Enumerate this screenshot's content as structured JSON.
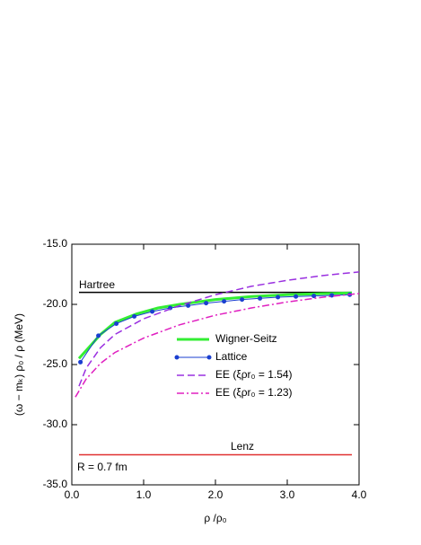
{
  "chart_data": {
    "type": "line",
    "xlabel": "ρ /ρ₀",
    "ylabel": "(ω − mₖ) ρ₀ / ρ (MeV)",
    "xlim": [
      0,
      4
    ],
    "ylim": [
      -35,
      -15
    ],
    "xticks": [
      {
        "value": 0,
        "label": "0.0"
      },
      {
        "value": 1,
        "label": "1.0"
      },
      {
        "value": 2,
        "label": "2.0"
      },
      {
        "value": 3,
        "label": "3.0"
      },
      {
        "value": 4,
        "label": "4.0"
      }
    ],
    "yticks": [
      {
        "value": -35,
        "label": "-35.0"
      },
      {
        "value": -30,
        "label": "-30.0"
      },
      {
        "value": -25,
        "label": "-25.0"
      },
      {
        "value": -20,
        "label": "-20.0"
      },
      {
        "value": -15,
        "label": "-15.0"
      }
    ],
    "reference_lines": [
      {
        "label": "Hartree",
        "value": -19,
        "x": [
          0.1,
          3.9
        ],
        "color": "#000000"
      },
      {
        "label": "Lenz",
        "value": -32.5,
        "x": [
          0.1,
          3.9
        ],
        "color": "#e03030"
      }
    ],
    "annotations": [
      "R = 0.7 fm"
    ],
    "series": [
      {
        "name": "Wigner-Seitz",
        "color": "#33ee33",
        "style": "solid",
        "x": [
          0.1,
          0.4,
          0.6,
          0.9,
          1.2,
          1.5,
          2.0,
          2.5,
          3.0,
          3.5,
          3.9
        ],
        "values": [
          -24.5,
          -22.5,
          -21.5,
          -20.8,
          -20.3,
          -20.0,
          -19.6,
          -19.35,
          -19.2,
          -19.1,
          -19.05
        ]
      },
      {
        "name": "Lattice",
        "color": "#1a3fd0",
        "style": "markers",
        "x": [
          0.12,
          0.37,
          0.62,
          0.87,
          1.12,
          1.37,
          1.62,
          1.87,
          2.12,
          2.37,
          2.62,
          2.87,
          3.12,
          3.37,
          3.62,
          3.87
        ],
        "values": [
          -24.8,
          -22.6,
          -21.6,
          -21.0,
          -20.6,
          -20.3,
          -20.1,
          -19.9,
          -19.75,
          -19.6,
          -19.5,
          -19.4,
          -19.35,
          -19.3,
          -19.25,
          -19.2
        ]
      },
      {
        "name": "EE (ξρr₀ = 1.54)",
        "color": "#9a30e0",
        "style": "dash",
        "x": [
          0.1,
          0.2,
          0.4,
          0.6,
          1.0,
          1.5,
          2.0,
          2.5,
          3.0,
          3.5,
          4.0
        ],
        "values": [
          -26.8,
          -25.3,
          -23.6,
          -22.5,
          -21.2,
          -20.1,
          -19.2,
          -18.5,
          -18.0,
          -17.6,
          -17.3
        ]
      },
      {
        "name": "EE (ξρr₀ = 1.23)",
        "color": "#e020c0",
        "style": "dashdot",
        "x": [
          0.05,
          0.2,
          0.4,
          0.6,
          1.0,
          1.5,
          2.0,
          2.5,
          3.0,
          3.5,
          4.0
        ],
        "values": [
          -27.7,
          -26.2,
          -24.9,
          -24.0,
          -22.8,
          -21.7,
          -20.9,
          -20.3,
          -19.8,
          -19.4,
          -19.1
        ]
      }
    ]
  }
}
